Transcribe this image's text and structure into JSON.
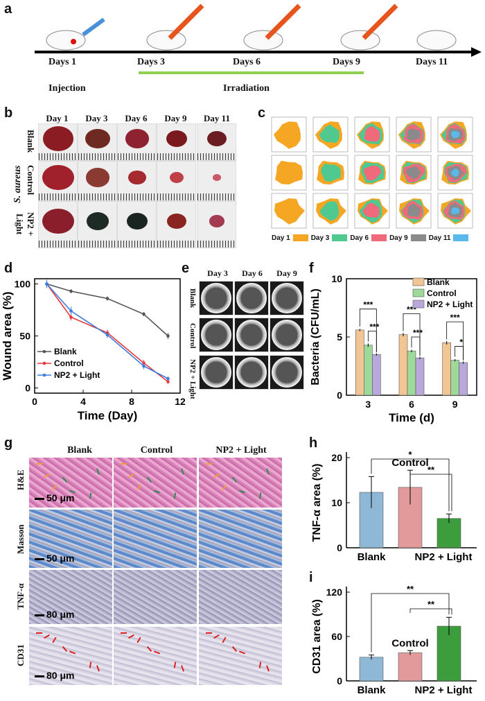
{
  "panels": {
    "a": "a",
    "b": "b",
    "c": "c",
    "d": "d",
    "e": "e",
    "f": "f",
    "g": "g",
    "h": "h",
    "i": "i"
  },
  "timeline": {
    "days": [
      "Days 1",
      "Days 3",
      "Days 6",
      "Days 9",
      "Days 11"
    ],
    "injection": "Injection",
    "irradiation": "Irradiation"
  },
  "photos": {
    "columns": [
      "Day 1",
      "Day 3",
      "Day 6",
      "Day 9",
      "Day 11"
    ],
    "rows": [
      "Blank",
      "Control",
      "NP2 + Light"
    ],
    "organism": "S. aureus"
  },
  "outlines": {
    "legend": [
      "Day 1",
      "Day 3",
      "Day 6",
      "Day 9",
      "Day 11"
    ],
    "colors": [
      "#f5a623",
      "#4fc98f",
      "#ef6b7c",
      "#8a8a8a",
      "#5ab8ea"
    ]
  },
  "dishes": {
    "columns": [
      "Day 3",
      "Day 6",
      "Day 9"
    ],
    "rows": [
      "Blank",
      "Control",
      "NP2 + Light"
    ]
  },
  "histology": {
    "columns": [
      "Blank",
      "Control",
      "NP2 + Light"
    ],
    "rows": [
      "H&E",
      "Masson",
      "TNF-α",
      "CD31"
    ],
    "scales": [
      "50 μm",
      "50 μm",
      "80 μm",
      "80 μm"
    ]
  },
  "chart_data": [
    {
      "id": "d",
      "type": "line",
      "xlabel": "Time (Day)",
      "ylabel": "Wound area (%)",
      "xlim": [
        0,
        12
      ],
      "ylim": [
        -5,
        105
      ],
      "xticks": [
        0,
        4,
        8,
        12
      ],
      "yticks": [
        0,
        50,
        100
      ],
      "x": [
        1,
        3,
        6,
        9,
        11
      ],
      "series": [
        {
          "name": "Blank",
          "color": "#555555",
          "values": [
            100,
            93,
            86,
            71,
            50
          ],
          "errors": [
            3,
            2,
            2,
            2,
            3
          ]
        },
        {
          "name": "Control",
          "color": "#e8383d",
          "values": [
            100,
            68,
            53,
            24,
            6
          ],
          "errors": [
            3,
            3,
            3,
            3,
            2
          ]
        },
        {
          "name": "NP2 + Light",
          "color": "#3b7ddd",
          "values": [
            100,
            74,
            51,
            21,
            9
          ],
          "errors": [
            4,
            4,
            3,
            3,
            2
          ]
        }
      ]
    },
    {
      "id": "f",
      "type": "bar",
      "xlabel": "Time (d)",
      "ylabel": "Bacteria (CFU/mL)",
      "ylim": [
        0,
        10
      ],
      "yticks": [
        0,
        5,
        10
      ],
      "categories": [
        "3",
        "6",
        "9"
      ],
      "series": [
        {
          "name": "Blank",
          "color": "#f2c594",
          "values": [
            5.6,
            5.2,
            4.5
          ],
          "errors": [
            0.1,
            0.15,
            0.15
          ]
        },
        {
          "name": "Control",
          "color": "#9ed99a",
          "values": [
            4.3,
            3.8,
            3.0
          ],
          "errors": [
            0.15,
            0.1,
            0.1
          ]
        },
        {
          "name": "NP2 + Light",
          "color": "#b9a8dc",
          "values": [
            3.5,
            3.2,
            2.8
          ],
          "errors": [
            0.1,
            0.1,
            0.1
          ]
        }
      ],
      "significance": [
        "***",
        "***",
        "***",
        "***",
        "***",
        "*"
      ]
    },
    {
      "id": "h",
      "type": "bar",
      "ylabel": "TNF-α area (%)",
      "ylim": [
        0,
        20
      ],
      "yticks": [
        0,
        10,
        20
      ],
      "categories": [
        "Blank",
        "Control",
        "NP2 + Light"
      ],
      "tick_labels": [
        "Blank",
        "NP2 + Light"
      ],
      "annotation": "Control",
      "values": [
        12.3,
        13.4,
        6.5
      ],
      "errors": [
        3.5,
        3.8,
        1.0
      ],
      "colors": [
        "#8fb7d6",
        "#e39a9a",
        "#3b9d3b"
      ],
      "significance": [
        "*",
        "**"
      ]
    },
    {
      "id": "i",
      "type": "bar",
      "ylabel": "CD31 area (%)",
      "ylim": [
        0,
        120
      ],
      "yticks": [
        0,
        60,
        120
      ],
      "categories": [
        "Blank",
        "Control",
        "NP2 + Light"
      ],
      "tick_labels": [
        "Blank",
        "NP2 + Light"
      ],
      "annotation": "Control",
      "values": [
        32,
        38,
        74
      ],
      "errors": [
        3,
        3,
        12
      ],
      "colors": [
        "#8fb7d6",
        "#e39a9a",
        "#3b9d3b"
      ],
      "significance": [
        "**",
        "**"
      ]
    }
  ]
}
